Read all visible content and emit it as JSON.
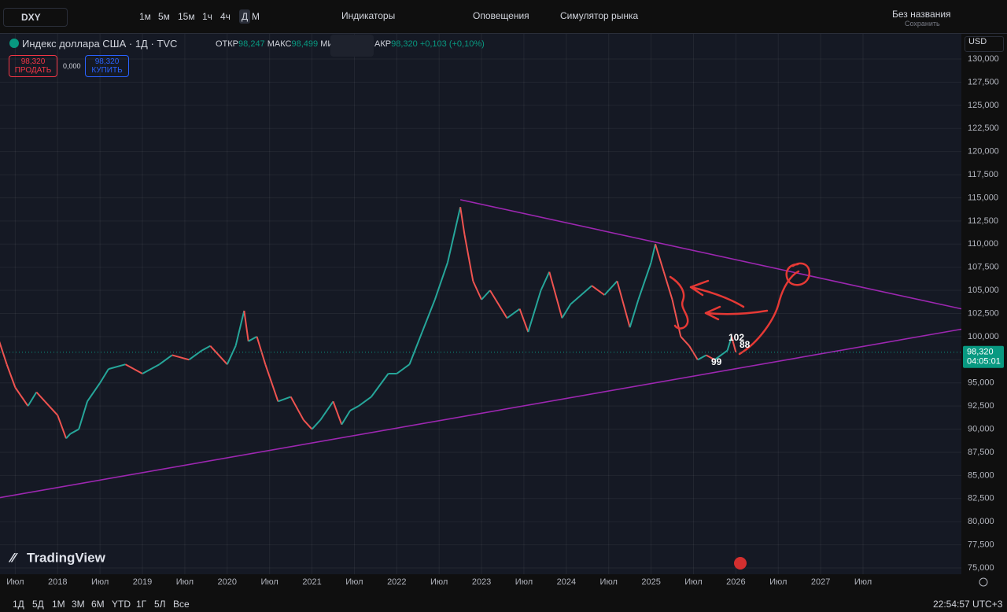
{
  "toolbar": {
    "symbol": "DXY",
    "intervals": [
      "1м",
      "5м",
      "15м",
      "1ч",
      "4ч",
      "Д",
      "М"
    ],
    "indicators": "Индикаторы",
    "alerts": "Оповещения",
    "replay": "Симулятор рынка",
    "layout_name": "Без названия",
    "save": "Сохранить"
  },
  "legend": {
    "title": "Индекс доллара США · 1Д · TVC",
    "open_label": "ОТКР",
    "open": "98,247",
    "high_label": "МАКС",
    "high": "98,499",
    "low_label": "МИ",
    "close_label": "АКР",
    "close": "98,320",
    "change": "+0,103 (+0,10%)"
  },
  "trade": {
    "sell_price": "98,320",
    "sell": "ПРОДАТЬ",
    "spread": "0,000",
    "buy_price": "98,320",
    "buy": "КУПИТЬ"
  },
  "currency": "USD",
  "logo": "TradingView",
  "ranges": [
    "1Д",
    "5Д",
    "1М",
    "3М",
    "6М",
    "YTD",
    "1Г",
    "5Л",
    "Все"
  ],
  "clock": "22:54:57 UTC+3",
  "chart_data": {
    "type": "line",
    "x": [
      2017.3,
      2017.4,
      2017.5,
      2017.65,
      2017.75,
      2017.85,
      2018.0,
      2018.1,
      2018.15,
      2018.25,
      2018.35,
      2018.5,
      2018.6,
      2018.8,
      2018.9,
      2019.0,
      2019.2,
      2019.35,
      2019.55,
      2019.7,
      2019.8,
      2020.0,
      2020.1,
      2020.2,
      2020.25,
      2020.35,
      2020.45,
      2020.6,
      2020.75,
      2020.9,
      2021.0,
      2021.1,
      2021.25,
      2021.35,
      2021.45,
      2021.55,
      2021.7,
      2021.9,
      2022.0,
      2022.15,
      2022.3,
      2022.45,
      2022.6,
      2022.75,
      2022.8,
      2022.9,
      2023.0,
      2023.1,
      2023.3,
      2023.45,
      2023.55,
      2023.7,
      2023.8,
      2023.95,
      2024.05,
      2024.3,
      2024.45,
      2024.6,
      2024.75,
      2024.85,
      2025.0,
      2025.05,
      2025.15,
      2025.25,
      2025.35,
      2025.45,
      2025.55,
      2025.65,
      2025.75,
      2025.9,
      2025.95,
      2026.0
    ],
    "values": [
      99.8,
      97,
      94.5,
      92.5,
      94,
      93,
      91.5,
      89,
      89.5,
      90,
      93,
      95,
      96.5,
      97,
      96.5,
      96,
      97,
      98,
      97.5,
      98.5,
      99,
      97,
      99,
      102.8,
      99.5,
      100,
      97,
      93,
      93.5,
      91,
      90,
      91,
      93,
      90.5,
      92,
      92.5,
      93.5,
      96,
      96,
      97,
      100.5,
      104,
      108,
      114,
      111,
      106,
      104,
      105,
      102,
      103,
      100.5,
      105,
      107,
      102,
      103.5,
      105.5,
      104.5,
      106,
      101,
      104,
      108,
      110,
      107,
      104,
      100,
      99,
      97.5,
      98,
      97.5,
      98.5,
      100,
      98.32
    ],
    "up_color": "#26a69a",
    "down_color": "#ef5350",
    "xlim": [
      2017.32,
      2028.66
    ],
    "ylim": [
      74.32,
      132.98
    ],
    "xticks": [
      {
        "value": 2017.5,
        "label": "Июл"
      },
      2018,
      {
        "value": 2018.5,
        "label": "Июл"
      },
      2019,
      {
        "value": 2019.5,
        "label": "Июл"
      },
      2020,
      {
        "value": 2020.5,
        "label": "Июл"
      },
      2021,
      {
        "value": 2021.5,
        "label": "Июл"
      },
      2022,
      {
        "value": 2022.5,
        "label": "Июл"
      },
      2023,
      {
        "value": 2023.5,
        "label": "Июл"
      },
      2024,
      {
        "value": 2024.5,
        "label": "Июл"
      },
      2025,
      {
        "value": 2025.5,
        "label": "Июл"
      },
      2026,
      {
        "value": 2026.5,
        "label": "Июл"
      },
      2027,
      {
        "value": 2027.5,
        "label": "Июл"
      }
    ],
    "yticks": [
      {
        "value": 75,
        "label": "75,000"
      },
      {
        "value": 77.5,
        "label": "77,500"
      },
      {
        "value": 80,
        "label": "80,000"
      },
      {
        "value": 82.5,
        "label": "82,500"
      },
      {
        "value": 85,
        "label": "85,000"
      },
      {
        "value": 87.5,
        "label": "87,500"
      },
      {
        "value": 90,
        "label": "90,000"
      },
      {
        "value": 92.5,
        "label": "92,500"
      },
      {
        "value": 95,
        "label": "95,000"
      },
      {
        "value": 97.5,
        "label": "97,500"
      },
      {
        "value": 100,
        "label": "100,000"
      },
      {
        "value": 102.5,
        "label": "102,500"
      },
      {
        "value": 105,
        "label": "105,000"
      },
      {
        "value": 107.5,
        "label": "107,500"
      },
      {
        "value": 110,
        "label": "110,000"
      },
      {
        "value": 112.5,
        "label": "112,500"
      },
      {
        "value": 115,
        "label": "115,000"
      },
      {
        "value": 117.5,
        "label": "117,500"
      },
      {
        "value": 120,
        "label": "120,000"
      },
      {
        "value": 122.5,
        "label": "122,500"
      },
      {
        "value": 125,
        "label": "125,000"
      },
      {
        "value": 127.5,
        "label": "127,500"
      },
      {
        "value": 130,
        "label": "130,000"
      }
    ],
    "grid": true,
    "last_price": {
      "value": 98.32,
      "label": "98,320"
    },
    "countdown": "04:05:01",
    "trendline_color": "#9c27b0",
    "trendlines": [
      {
        "x": [
          2022.75,
          2028.66
        ],
        "y": [
          114.8,
          103
        ]
      },
      {
        "x": [
          2017.32,
          2028.66
        ],
        "y": [
          82.6,
          100.8
        ]
      }
    ],
    "annotations": [
      "102",
      "88",
      "99"
    ]
  }
}
